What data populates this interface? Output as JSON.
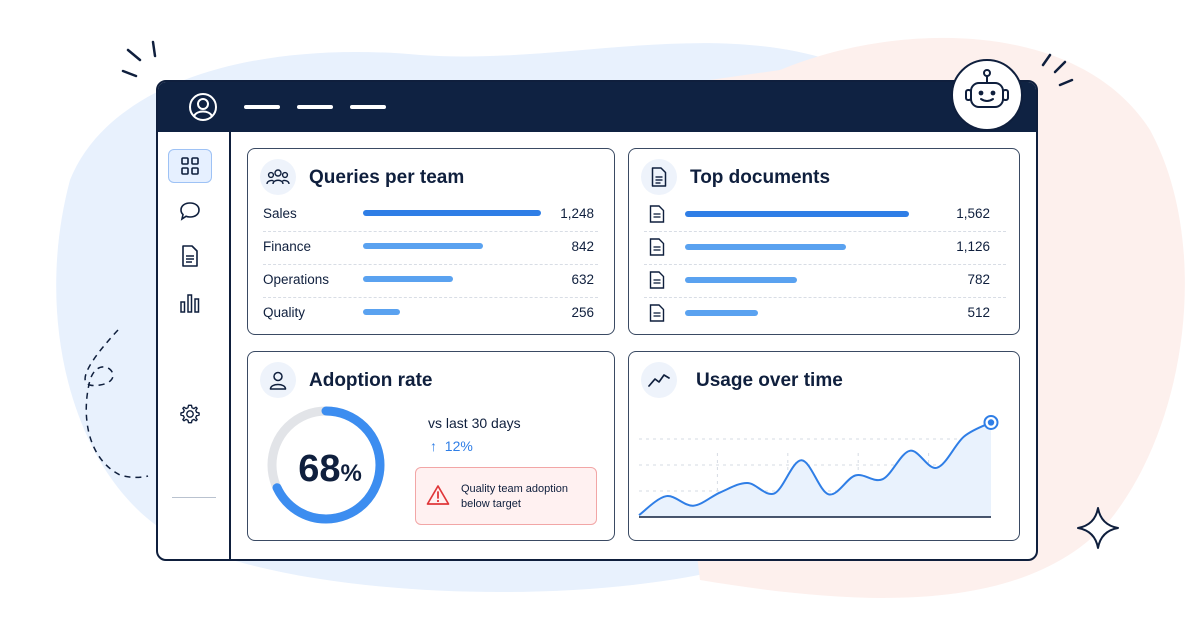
{
  "colors": {
    "navy": "#0f2242",
    "accent": "#2f7ee6",
    "bar": "#5aa2f0",
    "alert_bg": "#fff1f1",
    "alert_border": "#f2a6a6",
    "alert_icon": "#e0373a"
  },
  "header": {
    "icons": [
      "user-circle-icon",
      "menu-dash",
      "menu-dash",
      "menu-dash",
      "robot-icon"
    ]
  },
  "sidebar": {
    "items": [
      {
        "icon": "grid-icon",
        "active": true
      },
      {
        "icon": "chat-icon",
        "active": false
      },
      {
        "icon": "document-icon",
        "active": false
      },
      {
        "icon": "bar-chart-icon",
        "active": false
      },
      {
        "icon": "gear-icon",
        "active": false
      }
    ]
  },
  "queries_card": {
    "title": "Queries per team",
    "icon": "team-icon",
    "rows": [
      {
        "label": "Sales",
        "value": "1,248",
        "amount": 1248
      },
      {
        "label": "Finance",
        "value": "842",
        "amount": 842
      },
      {
        "label": "Operations",
        "value": "632",
        "amount": 632
      },
      {
        "label": "Quality",
        "value": "256",
        "amount": 256
      }
    ]
  },
  "documents_card": {
    "title": "Top documents",
    "icon": "document-icon",
    "rows": [
      {
        "value": "1,562",
        "amount": 1562
      },
      {
        "value": "1,126",
        "amount": 1126
      },
      {
        "value": "782",
        "amount": 782
      },
      {
        "value": "512",
        "amount": 512
      }
    ]
  },
  "adoption_card": {
    "title": "Adoption rate",
    "icon": "person-icon",
    "rate_value": "68",
    "rate_unit": "%",
    "rate_fraction": 0.68,
    "comparison_label": "vs last 30 days",
    "delta_arrow": "↑",
    "delta_value": "12%",
    "alert_icon": "warning-triangle-icon",
    "alert_text": "Quality team adoption below target"
  },
  "usage_card": {
    "title": "Usage over time",
    "icon": "trend-line-icon"
  },
  "chart_data": {
    "type": "area",
    "series": [
      {
        "values": [
          2,
          22,
          12,
          26,
          36,
          25,
          60,
          24,
          44,
          40,
          70,
          52,
          85,
          100
        ]
      }
    ],
    "ylim": [
      0,
      110
    ],
    "grid": true,
    "highlighted_point": "last"
  }
}
